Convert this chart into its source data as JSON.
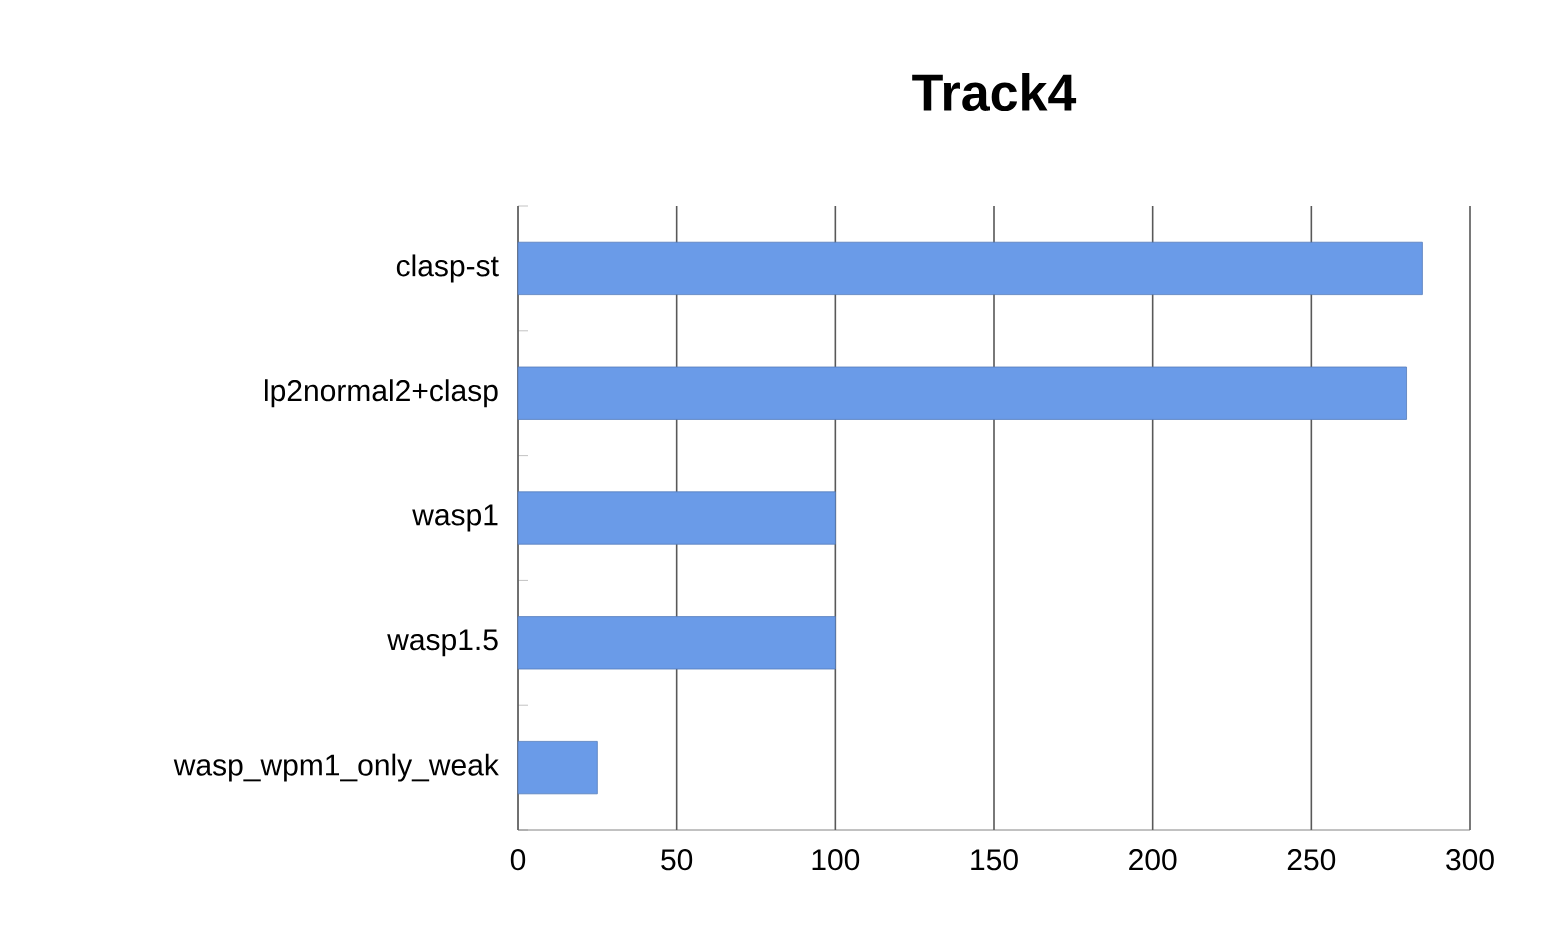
{
  "chart_data": {
    "type": "bar",
    "orientation": "horizontal",
    "title": "Track4",
    "categories": [
      "clasp-st",
      "lp2normal2+clasp",
      "wasp1",
      "wasp1.5",
      "wasp_wpm1_only_weak"
    ],
    "values": [
      285,
      280,
      100,
      100,
      25
    ],
    "color": "#6a9be8",
    "xlim": [
      0,
      300
    ],
    "xticks": [
      0,
      50,
      100,
      150,
      200,
      250,
      300
    ],
    "grid": "x"
  }
}
